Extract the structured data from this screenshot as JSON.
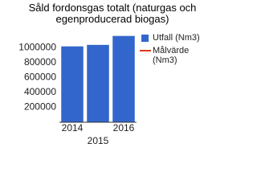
{
  "chart_data": {
    "type": "bar",
    "title": "Såld fordonsgas totalt (naturgas och egenproducerad biogas)",
    "categories": [
      "2014",
      "2015",
      "2016"
    ],
    "series": [
      {
        "name": "Utfall (Nm3)",
        "color": "#3366cc",
        "values": [
          1020000,
          1040000,
          1160000
        ]
      },
      {
        "name": "Målvärde (Nm3)",
        "color": "#dc3912",
        "values": [
          null,
          null,
          null
        ]
      }
    ],
    "ylim": [
      0,
      1200000
    ],
    "yticks": [
      200000,
      400000,
      600000,
      800000,
      1000000
    ],
    "legend": "right"
  }
}
